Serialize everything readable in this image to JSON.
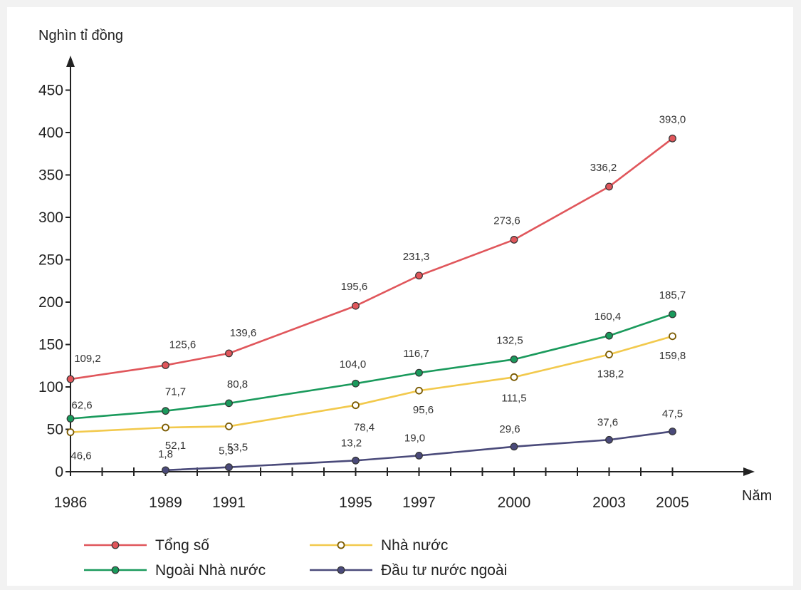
{
  "chart_data": {
    "type": "line",
    "ylabel": "Nghìn tỉ đồng",
    "xlabel": "Năm",
    "x": [
      1986,
      1989,
      1991,
      1995,
      1997,
      2000,
      2003,
      2005
    ],
    "x_tick_labels": [
      "1986",
      "1989",
      "1991",
      "1995",
      "1997",
      "2000",
      "2003",
      "2005"
    ],
    "x_range": [
      1986,
      2006
    ],
    "ylim": [
      0,
      450
    ],
    "y_ticks": [
      0,
      50,
      100,
      150,
      200,
      250,
      300,
      350,
      400,
      450
    ],
    "y_tick_labels": [
      "0",
      "50",
      "100",
      "150",
      "200",
      "250",
      "300",
      "350",
      "400",
      "450"
    ],
    "grid": false,
    "legend_position": "bottom",
    "series": [
      {
        "name": "Tổng số",
        "color": "#e0565b",
        "marker": "filled",
        "x": [
          1986,
          1989,
          1991,
          1995,
          1997,
          2000,
          2003,
          2005
        ],
        "values": [
          109.2,
          125.6,
          139.6,
          195.6,
          231.3,
          273.6,
          336.2,
          393.0
        ],
        "labels": [
          "109,2",
          "125,6",
          "139,6",
          "195,6",
          "231,3",
          "273,6",
          "336,2",
          "393,0"
        ]
      },
      {
        "name": "Nhà nước",
        "color": "#f2c94c",
        "marker": "hollow",
        "x": [
          1986,
          1989,
          1991,
          1995,
          1997,
          2000,
          2003,
          2005
        ],
        "values": [
          46.6,
          52.1,
          53.5,
          78.4,
          95.6,
          111.5,
          138.2,
          159.8
        ],
        "labels": [
          "46,6",
          "52,1",
          "53,5",
          "78,4",
          "95,6",
          "111,5",
          "138,2",
          "159,8"
        ]
      },
      {
        "name": "Ngoài Nhà nước",
        "color": "#1a9a5c",
        "marker": "filled",
        "x": [
          1986,
          1989,
          1991,
          1995,
          1997,
          2000,
          2003,
          2005
        ],
        "values": [
          62.6,
          71.7,
          80.8,
          104.0,
          116.7,
          132.5,
          160.4,
          185.7
        ],
        "labels": [
          "62,6",
          "71,7",
          "80,8",
          "104,0",
          "116,7",
          "132,5",
          "160,4",
          "185,7"
        ]
      },
      {
        "name": "Đầu tư nước ngoài",
        "color": "#4a4a7a",
        "marker": "filled",
        "x": [
          1989,
          1991,
          1995,
          1997,
          2000,
          2003,
          2005
        ],
        "values": [
          1.8,
          5.3,
          13.2,
          19.0,
          29.6,
          37.6,
          47.5
        ],
        "labels": [
          "1,8",
          "5,3",
          "13,2",
          "19,0",
          "29,6",
          "37,6",
          "47,5"
        ]
      }
    ]
  }
}
